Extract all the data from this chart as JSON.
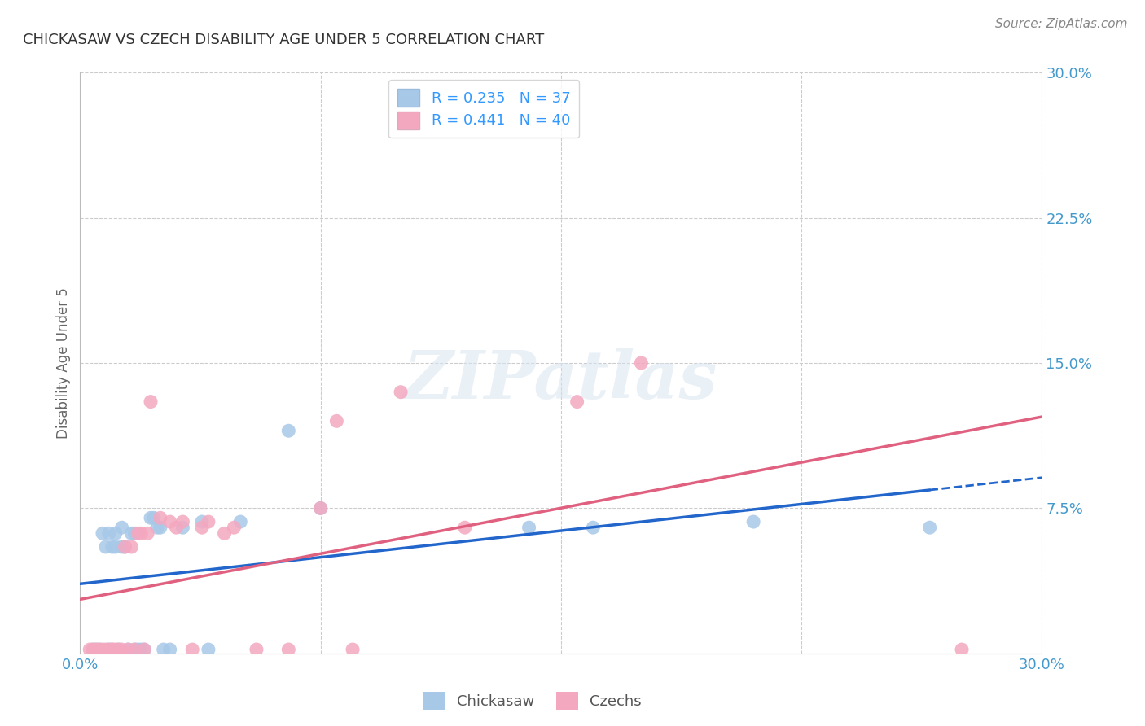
{
  "title": "CHICKASAW VS CZECH DISABILITY AGE UNDER 5 CORRELATION CHART",
  "source": "Source: ZipAtlas.com",
  "ylabel": "Disability Age Under 5",
  "xlim": [
    0.0,
    0.3
  ],
  "ylim": [
    0.0,
    0.3
  ],
  "yticks": [
    0.0,
    0.075,
    0.15,
    0.225,
    0.3
  ],
  "ytick_labels": [
    "",
    "7.5%",
    "15.0%",
    "22.5%",
    "30.0%"
  ],
  "xticks": [
    0.0,
    0.075,
    0.15,
    0.225,
    0.3
  ],
  "xtick_labels": [
    "0.0%",
    "",
    "",
    "",
    "30.0%"
  ],
  "chickasaw_R": 0.235,
  "chickasaw_N": 37,
  "czech_R": 0.441,
  "czech_N": 40,
  "chickasaw_color": "#a8c8e8",
  "czech_color": "#f4a8c0",
  "chickasaw_line_color": "#2266cc",
  "czech_line_color": "#e06080",
  "legend_text_color": "#3399ff",
  "watermark_text": "ZIPatlas",
  "chickasaw_x": [
    0.004,
    0.005,
    0.006,
    0.007,
    0.008,
    0.009,
    0.009,
    0.01,
    0.011,
    0.011,
    0.012,
    0.013,
    0.013,
    0.014,
    0.015,
    0.016,
    0.017,
    0.017,
    0.018,
    0.019,
    0.02,
    0.022,
    0.023,
    0.024,
    0.025,
    0.026,
    0.028,
    0.032,
    0.038,
    0.04,
    0.05,
    0.065,
    0.075,
    0.14,
    0.16,
    0.21,
    0.265
  ],
  "chickasaw_y": [
    0.002,
    0.002,
    0.002,
    0.062,
    0.055,
    0.002,
    0.062,
    0.055,
    0.055,
    0.062,
    0.002,
    0.055,
    0.065,
    0.055,
    0.002,
    0.062,
    0.062,
    0.002,
    0.002,
    0.002,
    0.002,
    0.07,
    0.07,
    0.065,
    0.065,
    0.002,
    0.002,
    0.065,
    0.068,
    0.002,
    0.068,
    0.115,
    0.075,
    0.065,
    0.065,
    0.068,
    0.065
  ],
  "czech_x": [
    0.003,
    0.004,
    0.005,
    0.006,
    0.007,
    0.008,
    0.009,
    0.01,
    0.01,
    0.011,
    0.012,
    0.013,
    0.014,
    0.015,
    0.016,
    0.017,
    0.018,
    0.019,
    0.02,
    0.021,
    0.022,
    0.025,
    0.028,
    0.03,
    0.032,
    0.035,
    0.038,
    0.04,
    0.045,
    0.048,
    0.055,
    0.065,
    0.075,
    0.08,
    0.085,
    0.1,
    0.12,
    0.155,
    0.175,
    0.275
  ],
  "czech_y": [
    0.002,
    0.002,
    0.002,
    0.002,
    0.002,
    0.002,
    0.002,
    0.002,
    0.002,
    0.002,
    0.002,
    0.002,
    0.055,
    0.002,
    0.055,
    0.002,
    0.062,
    0.062,
    0.002,
    0.062,
    0.13,
    0.07,
    0.068,
    0.065,
    0.068,
    0.002,
    0.065,
    0.068,
    0.062,
    0.065,
    0.002,
    0.002,
    0.075,
    0.12,
    0.002,
    0.135,
    0.065,
    0.13,
    0.15,
    0.002
  ],
  "background_color": "#ffffff",
  "grid_color": "#cccccc",
  "title_color": "#333333",
  "axis_label_color": "#666666",
  "tick_label_color": "#4499cc"
}
